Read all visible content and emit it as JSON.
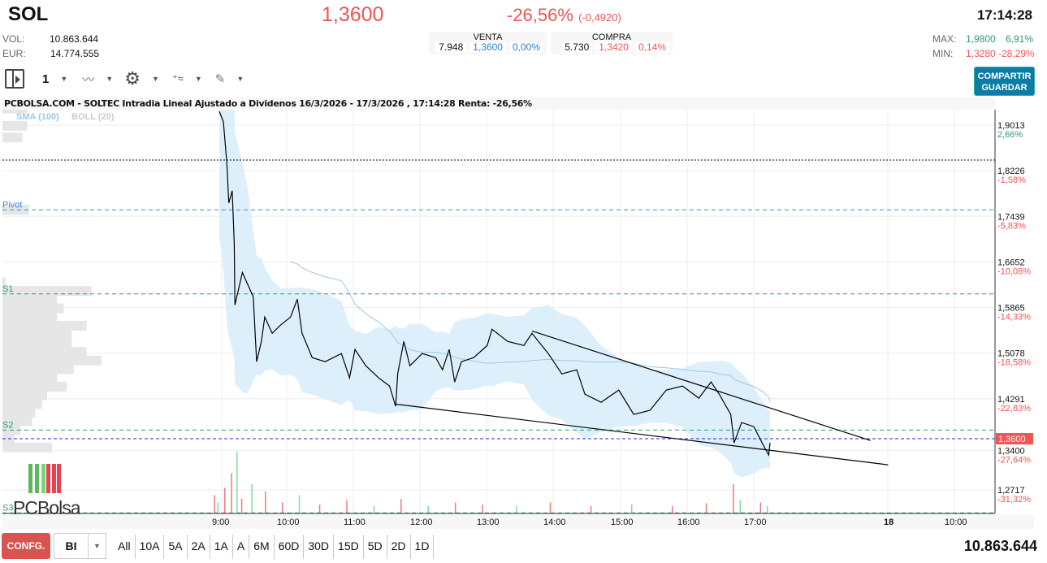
{
  "header": {
    "symbol": "SOL",
    "last": "1,3600",
    "change_pct": "-26,56%",
    "change_abs": "(-0,4920)",
    "time": "17:14:28",
    "vol_label": "VOL:",
    "vol": "10.863.644",
    "eur_label": "EUR:",
    "eur": "14.774.555",
    "max_label": "MAX:",
    "max": "1,9800",
    "max_pct": "6,91%",
    "min_label": "MIN:",
    "min": "1,3280",
    "min_pct": "-28,29%"
  },
  "venta": {
    "label": "VENTA",
    "qty": "7.948",
    "price": "1,3600",
    "pct": "0,00%"
  },
  "compra": {
    "label": "COMPRA",
    "qty": "5.730",
    "price": "1,3420",
    "pct": "0,14%"
  },
  "toolbar": {
    "interval": "1",
    "share": "COMPARTIR",
    "save": "GUARDAR"
  },
  "chart_title": "PCBOLSA.COM - SOLTEC Intradia Lineal Ajustado a Dividenos 16/3/2026 - 17/3/2026 , 17:14:28 Renta: -26,56%",
  "chart_data": {
    "type": "line",
    "legend": {
      "sma": "SMA (100)",
      "boll": "BOLL (20)"
    },
    "colors": {
      "line": "#000000",
      "band": "#d6ebfb",
      "sma": "#9cc7e8",
      "up": "#7fdc9f",
      "down": "#f07a7a",
      "price_tag": "#f25353"
    },
    "y_ticks": [
      {
        "v": 1.9013,
        "pct": "2,66%"
      },
      {
        "v": 1.8226,
        "pct": "-1,58%"
      },
      {
        "v": 1.7439,
        "pct": "-5,83%"
      },
      {
        "v": 1.6652,
        "pct": "-10,08%"
      },
      {
        "v": 1.5865,
        "pct": "-14,33%"
      },
      {
        "v": 1.5078,
        "pct": "-18,58%"
      },
      {
        "v": 1.4291,
        "pct": "-22,83%"
      },
      {
        "v": 1.34,
        "pct": "-27,64%"
      },
      {
        "v": 1.2717,
        "pct": "-31,32%"
      }
    ],
    "y_tick_labels": [
      "1,9013",
      "1,8226",
      "1,7439",
      "1,6652",
      "1,5865",
      "1,5078",
      "1,4291",
      "1,3400",
      "1,2717"
    ],
    "x_ticks": [
      "9:00",
      "10:00",
      "11:00",
      "12:00",
      "13:00",
      "14:00",
      "15:00",
      "16:00",
      "17:00",
      "18",
      "10:00"
    ],
    "current_price": 1.36,
    "current_price_label": "1,3600",
    "levels": [
      {
        "name": "Pivot",
        "v": 1.755,
        "color": "#3b8bdc"
      },
      {
        "name": "S1",
        "v": 1.61,
        "color": "#2a9d6f"
      },
      {
        "name": "S2",
        "v": 1.375,
        "color": "#2a9d6f"
      },
      {
        "name": "S3",
        "v": 1.232,
        "color": "#2a9d6f"
      },
      {
        "name": "",
        "v": 1.841,
        "color": "#000000"
      }
    ],
    "series": [
      [
        9.12,
        1.925
      ],
      [
        9.18,
        1.907
      ],
      [
        9.23,
        1.837
      ],
      [
        9.26,
        1.767
      ],
      [
        9.31,
        1.788
      ],
      [
        9.34,
        1.697
      ],
      [
        9.35,
        1.591
      ],
      [
        9.46,
        1.647
      ],
      [
        9.54,
        1.626
      ],
      [
        9.62,
        1.605
      ],
      [
        9.67,
        1.493
      ],
      [
        9.74,
        1.528
      ],
      [
        9.79,
        1.57
      ],
      [
        9.9,
        1.542
      ],
      [
        10.02,
        1.556
      ],
      [
        10.17,
        1.57
      ],
      [
        10.27,
        1.601
      ],
      [
        10.34,
        1.542
      ],
      [
        10.49,
        1.5
      ],
      [
        10.68,
        1.493
      ],
      [
        10.92,
        1.507
      ],
      [
        11.04,
        1.465
      ],
      [
        11.12,
        1.514
      ],
      [
        11.28,
        1.486
      ],
      [
        11.47,
        1.465
      ],
      [
        11.63,
        1.451
      ],
      [
        11.72,
        1.416
      ],
      [
        11.75,
        1.472
      ],
      [
        11.84,
        1.528
      ],
      [
        11.93,
        1.486
      ],
      [
        12.11,
        1.507
      ],
      [
        12.31,
        1.5
      ],
      [
        12.41,
        1.479
      ],
      [
        12.51,
        1.514
      ],
      [
        12.59,
        1.458
      ],
      [
        12.69,
        1.493
      ],
      [
        12.87,
        1.5
      ],
      [
        13.07,
        1.521
      ],
      [
        13.14,
        1.549
      ],
      [
        13.37,
        1.528
      ],
      [
        13.61,
        1.521
      ],
      [
        13.73,
        1.542
      ],
      [
        13.97,
        1.507
      ],
      [
        14.17,
        1.472
      ],
      [
        14.39,
        1.479
      ],
      [
        14.51,
        1.437
      ],
      [
        14.75,
        1.423
      ],
      [
        15.01,
        1.444
      ],
      [
        15.23,
        1.402
      ],
      [
        15.47,
        1.409
      ],
      [
        15.71,
        1.444
      ],
      [
        15.95,
        1.451
      ],
      [
        16.19,
        1.43
      ],
      [
        16.37,
        1.458
      ],
      [
        16.49,
        1.437
      ],
      [
        16.66,
        1.402
      ],
      [
        16.71,
        1.353
      ],
      [
        16.82,
        1.388
      ],
      [
        17.0,
        1.381
      ],
      [
        17.14,
        1.349
      ],
      [
        17.22,
        1.332
      ],
      [
        17.24,
        1.353
      ]
    ],
    "trendlines": [
      [
        [
          13.73,
          1.546
        ],
        [
          18.72,
          1.357
        ]
      ],
      [
        [
          11.7,
          1.42
        ],
        [
          18.98,
          1.315
        ]
      ]
    ],
    "volume": [
      [
        9.05,
        0.25,
        "d"
      ],
      [
        9.1,
        0.15,
        "u"
      ],
      [
        9.2,
        0.35,
        "d"
      ],
      [
        9.3,
        0.55,
        "d"
      ],
      [
        9.38,
        0.85,
        "u"
      ],
      [
        9.45,
        0.2,
        "d"
      ],
      [
        9.6,
        0.4,
        "u"
      ],
      [
        9.8,
        0.3,
        "d"
      ],
      [
        10.05,
        0.15,
        "d"
      ],
      [
        10.3,
        0.25,
        "u"
      ],
      [
        10.6,
        0.12,
        "d"
      ],
      [
        11.0,
        0.18,
        "d"
      ],
      [
        11.4,
        0.1,
        "u"
      ],
      [
        11.8,
        0.2,
        "d"
      ],
      [
        12.2,
        0.1,
        "u"
      ],
      [
        12.6,
        0.15,
        "d"
      ],
      [
        13.0,
        0.12,
        "d"
      ],
      [
        13.5,
        0.1,
        "u"
      ],
      [
        14.0,
        0.15,
        "d"
      ],
      [
        14.6,
        0.1,
        "d"
      ],
      [
        15.2,
        0.12,
        "u"
      ],
      [
        15.8,
        0.1,
        "d"
      ],
      [
        16.3,
        0.14,
        "d"
      ],
      [
        16.7,
        0.4,
        "d"
      ],
      [
        16.8,
        0.18,
        "u"
      ],
      [
        17.1,
        0.15,
        "d"
      ],
      [
        17.2,
        0.1,
        "u"
      ]
    ],
    "volume_profile": [
      [
        1.93,
        0.25
      ],
      [
        1.9,
        0.25
      ],
      [
        1.88,
        0.2
      ],
      [
        1.755,
        0.27
      ],
      [
        1.63,
        0.03
      ],
      [
        1.615,
        0.9
      ],
      [
        1.6,
        0.55
      ],
      [
        1.585,
        0.62
      ],
      [
        1.57,
        0.55
      ],
      [
        1.555,
        0.85
      ],
      [
        1.54,
        0.7
      ],
      [
        1.525,
        0.7
      ],
      [
        1.51,
        0.85
      ],
      [
        1.495,
        1.0
      ],
      [
        1.48,
        0.72
      ],
      [
        1.465,
        0.55
      ],
      [
        1.45,
        0.65
      ],
      [
        1.435,
        0.45
      ],
      [
        1.42,
        0.4
      ],
      [
        1.405,
        0.33
      ],
      [
        1.39,
        0.3
      ],
      [
        1.375,
        0.18
      ],
      [
        1.36,
        0.12
      ],
      [
        1.345,
        0.5
      ]
    ]
  },
  "logo": "PCBolsa",
  "bottom": {
    "config": "CONFG.",
    "mode": "BI",
    "ranges": [
      "All",
      "10A",
      "5A",
      "2A",
      "1A",
      "A",
      "6M",
      "60D",
      "30D",
      "15D",
      "5D",
      "2D",
      "1D"
    ],
    "volume": "10.863.644"
  }
}
